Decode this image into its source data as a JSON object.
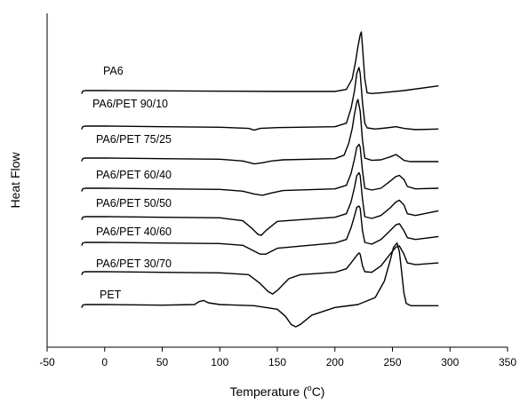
{
  "chart_data": {
    "type": "line",
    "title": "",
    "xlabel": "Temperature (",
    "xlabel_sup": "o",
    "xlabel_suffix": "C)",
    "ylabel": "Heat Flow",
    "xlim": [
      -50,
      350
    ],
    "x_ticks": [
      -50,
      0,
      50,
      100,
      150,
      200,
      250,
      300,
      350
    ],
    "y_ticks_shown": false,
    "grid": false,
    "legend": "inline labels above each curve",
    "line_color": "#000000",
    "series": [
      {
        "name": "PA6",
        "x": [
          -20,
          -19,
          -17,
          -15,
          0,
          50,
          100,
          150,
          200,
          210,
          215,
          218,
          220,
          222,
          223,
          224,
          226,
          228,
          232,
          240,
          260,
          290
        ],
        "y": [
          0.945,
          0.99,
          1.0,
          1.0,
          1.0,
          0.995,
          0.99,
          0.985,
          0.985,
          1.02,
          1.2,
          1.5,
          1.75,
          1.95,
          2.0,
          1.75,
          1.2,
          0.96,
          0.95,
          0.96,
          1.0,
          1.08
        ]
      },
      {
        "name": "PA6/PET 90/10",
        "x": [
          -20,
          -19,
          -17,
          -15,
          0,
          50,
          100,
          125,
          130,
          135,
          150,
          200,
          210,
          214,
          217,
          219,
          221,
          222,
          224,
          226,
          228,
          235,
          245,
          253,
          260,
          270,
          290
        ],
        "y": [
          0.945,
          0.99,
          1.0,
          1.0,
          1.0,
          0.99,
          0.98,
          0.96,
          0.93,
          0.96,
          0.975,
          0.99,
          1.05,
          1.3,
          1.6,
          1.9,
          2.0,
          1.9,
          1.4,
          1.05,
          0.97,
          0.95,
          0.97,
          0.99,
          0.96,
          0.94,
          0.95
        ]
      },
      {
        "name": "PA6/PET 75/25",
        "x": [
          -20,
          -19,
          -17,
          -15,
          0,
          50,
          100,
          120,
          130,
          137,
          145,
          155,
          200,
          208,
          212,
          215,
          217,
          219,
          220,
          222,
          224,
          226,
          232,
          240,
          248,
          253,
          256,
          260,
          265,
          270,
          290
        ],
        "y": [
          0.945,
          0.99,
          1.0,
          1.0,
          1.0,
          0.99,
          0.98,
          0.95,
          0.9,
          0.92,
          0.95,
          0.97,
          0.99,
          1.05,
          1.25,
          1.5,
          1.75,
          1.95,
          2.0,
          1.8,
          1.3,
          1.0,
          0.96,
          0.97,
          1.02,
          1.06,
          1.02,
          0.96,
          0.94,
          0.94,
          0.94
        ]
      },
      {
        "name": "PA6/PET 60/40",
        "x": [
          -20,
          -19,
          -17,
          -15,
          0,
          50,
          100,
          120,
          130,
          137,
          145,
          155,
          200,
          210,
          214,
          217,
          219,
          221,
          222,
          224,
          226,
          232,
          240,
          248,
          253,
          256,
          260,
          263,
          270,
          290
        ],
        "y": [
          0.945,
          0.99,
          1.0,
          1.0,
          1.0,
          0.99,
          0.98,
          0.95,
          0.9,
          0.88,
          0.92,
          0.96,
          0.99,
          1.05,
          1.25,
          1.5,
          1.7,
          1.75,
          1.7,
          1.3,
          1.0,
          0.97,
          1.0,
          1.12,
          1.2,
          1.22,
          1.15,
          1.03,
          0.99,
          1.0
        ]
      },
      {
        "name": "PA6/PET 50/50",
        "x": [
          -20,
          -19,
          -17,
          -15,
          0,
          50,
          100,
          120,
          128,
          133,
          136,
          140,
          150,
          200,
          210,
          214,
          217,
          219,
          221,
          222,
          224,
          226,
          232,
          240,
          248,
          253,
          256,
          260,
          263,
          270,
          290
        ],
        "y": [
          0.945,
          0.99,
          1.0,
          1.0,
          1.0,
          0.99,
          0.98,
          0.93,
          0.8,
          0.7,
          0.68,
          0.76,
          0.92,
          0.99,
          1.05,
          1.25,
          1.5,
          1.7,
          1.75,
          1.7,
          1.3,
          1.0,
          0.97,
          1.02,
          1.15,
          1.25,
          1.28,
          1.2,
          1.05,
          1.02,
          1.1
        ]
      },
      {
        "name": "PA6/PET 40/60",
        "x": [
          -20,
          -19,
          -17,
          -15,
          0,
          50,
          100,
          120,
          130,
          135,
          140,
          150,
          200,
          210,
          214,
          217,
          219,
          221,
          222,
          224,
          226,
          232,
          240,
          248,
          253,
          256,
          260,
          263,
          270,
          290
        ],
        "y": [
          0.945,
          0.99,
          1.0,
          1.0,
          1.0,
          0.99,
          0.98,
          0.95,
          0.85,
          0.8,
          0.8,
          0.9,
          0.99,
          1.05,
          1.25,
          1.45,
          1.6,
          1.62,
          1.58,
          1.2,
          1.0,
          0.97,
          1.05,
          1.2,
          1.3,
          1.32,
          1.2,
          1.08,
          1.05,
          1.1
        ]
      },
      {
        "name": "PA6/PET 30/70",
        "x": [
          -20,
          -19,
          -17,
          -15,
          0,
          50,
          100,
          125,
          135,
          142,
          146,
          150,
          160,
          170,
          200,
          210,
          216,
          219,
          221,
          222,
          224,
          226,
          232,
          240,
          248,
          253,
          256,
          260,
          263,
          270,
          290
        ],
        "y": [
          0.945,
          0.99,
          1.0,
          1.0,
          1.0,
          0.99,
          0.98,
          0.95,
          0.8,
          0.66,
          0.62,
          0.68,
          0.88,
          0.95,
          0.99,
          1.05,
          1.2,
          1.28,
          1.32,
          1.3,
          1.1,
          1.0,
          0.99,
          1.1,
          1.3,
          1.42,
          1.44,
          1.3,
          1.15,
          1.12,
          1.15
        ]
      },
      {
        "name": "PET",
        "x": [
          -20,
          -19,
          -17,
          -15,
          0,
          50,
          78,
          82,
          86,
          90,
          100,
          130,
          150,
          157,
          162,
          166,
          170,
          180,
          200,
          220,
          235,
          243,
          248,
          251,
          254,
          256,
          258,
          260,
          262,
          266,
          270,
          290
        ],
        "y": [
          0.945,
          0.99,
          1.0,
          1.0,
          1.0,
          0.99,
          1.0,
          1.05,
          1.07,
          1.03,
          1.0,
          0.98,
          0.92,
          0.8,
          0.66,
          0.62,
          0.66,
          0.82,
          0.95,
          1.0,
          1.12,
          1.4,
          1.75,
          1.98,
          2.05,
          1.9,
          1.55,
          1.2,
          1.02,
          0.98,
          0.98,
          0.98
        ]
      }
    ]
  }
}
